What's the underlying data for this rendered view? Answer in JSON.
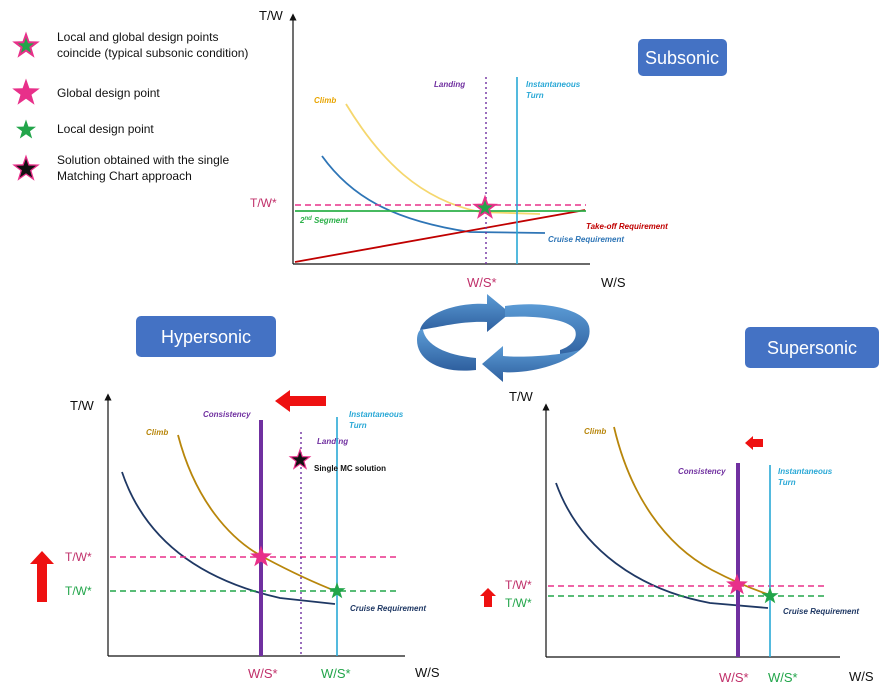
{
  "legend": {
    "items": [
      {
        "icon": "green-pink-star-icon",
        "line1": "Local and global design points",
        "line2": "coincide (typical subsonic condition)"
      },
      {
        "icon": "pink-star-icon",
        "line1": "Global design point",
        "line2": ""
      },
      {
        "icon": "green-star-icon",
        "line1": "Local design point",
        "line2": ""
      },
      {
        "icon": "black-star-icon",
        "line1": "Solution obtained with the single",
        "line2": "Matching Chart approach"
      }
    ]
  },
  "regimes": {
    "subsonic": "Subsonic",
    "hypersonic": "Hypersonic",
    "supersonic": "Supersonic"
  },
  "axes": {
    "y": "T/W",
    "x": "W/S"
  },
  "design_labels": {
    "tw": "T/W*",
    "ws": "W/S*"
  },
  "curves": {
    "climb": "Climb",
    "landing": "Landing",
    "instantaneous_turn_1": "Instantaneous",
    "instantaneous_turn_2": "Turn",
    "cruise": "Cruise Requirement",
    "takeoff": "Take-off Requirement",
    "second_segment_base": "2",
    "second_segment_sup": "nd",
    "second_segment_rest": " Segment",
    "consistency": "Consistency",
    "single_mc": "Single MC solution"
  },
  "colors": {
    "blue_box": "#4472c4",
    "climb": "#f5d76e",
    "climb_dark": "#b8860b",
    "cruise": "#2e75b6",
    "cruise_dark": "#1f3864",
    "landing": "#7030a0",
    "turn": "#29a8d6",
    "takeoff": "#c00000",
    "second_segment": "#2db14a",
    "pink": "#e8308a",
    "green": "#22a54a",
    "red_arrow": "#ee1111"
  }
}
